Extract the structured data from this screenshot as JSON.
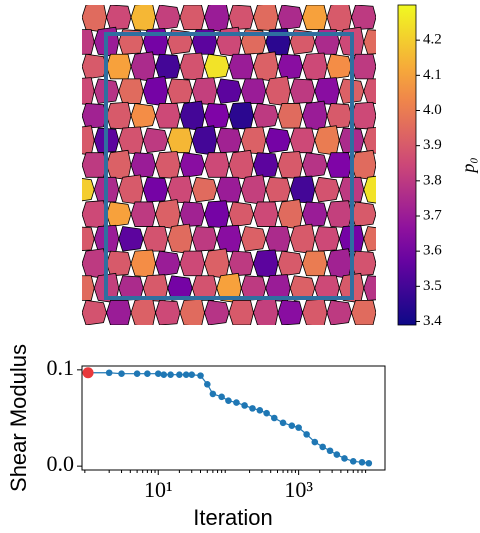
{
  "chart_data": [
    {
      "type": "tessellation",
      "colormap": "plasma",
      "colorbar_label": "p₀",
      "clim": [
        3.39,
        4.3
      ],
      "cticks": [
        3.4,
        3.5,
        3.6,
        3.7,
        3.8,
        3.9,
        {
          "value": 4,
          "label": "4.0"
        },
        4.1,
        4.2
      ],
      "cells": [
        [
          3.95,
          3.85,
          4.15,
          3.82,
          3.9,
          3.7,
          3.88,
          3.95,
          3.75,
          4.1,
          3.9,
          3.8
        ],
        [
          3.8,
          3.7,
          3.92,
          3.6,
          3.9,
          3.55,
          3.85,
          3.95,
          3.45,
          3.9,
          3.75,
          3.85,
          3.95
        ],
        [
          3.9,
          4.1,
          3.75,
          3.5,
          3.88,
          4.25,
          3.7,
          3.92,
          3.65,
          3.85,
          4.05,
          3.8
        ],
        [
          3.85,
          3.78,
          3.95,
          3.6,
          3.9,
          3.82,
          3.55,
          3.7,
          3.9,
          3.8,
          3.65,
          3.92,
          3.88
        ],
        [
          3.72,
          3.9,
          4.05,
          3.85,
          3.5,
          3.62,
          3.45,
          3.8,
          3.95,
          3.7,
          3.9,
          3.85
        ],
        [
          3.9,
          3.55,
          3.88,
          3.8,
          4.15,
          3.5,
          3.72,
          3.92,
          3.6,
          3.85,
          4.0,
          3.75,
          3.9
        ],
        [
          3.8,
          3.92,
          3.7,
          3.9,
          3.65,
          3.85,
          3.88,
          3.55,
          3.9,
          3.78,
          3.62,
          3.95
        ],
        [
          4.2,
          3.75,
          3.9,
          3.6,
          3.85,
          3.95,
          3.7,
          3.82,
          3.9,
          3.5,
          3.88,
          3.8,
          4.25
        ],
        [
          3.85,
          4.1,
          3.8,
          3.92,
          3.72,
          3.6,
          3.9,
          3.85,
          3.95,
          3.7,
          3.82,
          3.9
        ],
        [
          3.9,
          3.7,
          3.55,
          3.88,
          3.95,
          3.8,
          3.65,
          3.92,
          3.75,
          3.9,
          3.85,
          3.6,
          3.95
        ],
        [
          3.8,
          3.9,
          4.05,
          3.7,
          3.85,
          3.92,
          3.8,
          3.55,
          3.9,
          4.0,
          3.72,
          3.88
        ],
        [
          3.95,
          3.82,
          3.75,
          3.9,
          3.6,
          3.88,
          4.1,
          3.8,
          3.7,
          3.92,
          3.85,
          3.9,
          3.78
        ],
        [
          3.88,
          3.7,
          3.92,
          3.85,
          3.95,
          3.78,
          3.9,
          3.82,
          3.65,
          3.9,
          3.8,
          3.95
        ]
      ]
    },
    {
      "type": "line",
      "xscale": "log",
      "x_label": "Iteration",
      "y_label": "Shear Modulus",
      "color": "#1f77b4",
      "highlight_index": 0,
      "highlight_color": "#e8393c",
      "xlim": [
        0.82,
        17000
      ],
      "ylim": [
        -0.004,
        0.104
      ],
      "xticks": [
        {
          "value": 10,
          "label": "10¹"
        },
        {
          "value": 1000,
          "label": "10³"
        }
      ],
      "yticks": [
        {
          "value": 0,
          "label": "0.0"
        },
        0.1
      ],
      "x": [
        1,
        2,
        3,
        5,
        7,
        10,
        12,
        15,
        20,
        25,
        30,
        40,
        50,
        60,
        80,
        100,
        130,
        170,
        220,
        280,
        350,
        450,
        600,
        800,
        1000,
        1300,
        1700,
        2200,
        2800,
        3500,
        4500,
        6000,
        8000,
        10000
      ],
      "values": [
        0.097,
        0.097,
        0.096,
        0.096,
        0.096,
        0.096,
        0.095,
        0.095,
        0.095,
        0.095,
        0.095,
        0.094,
        0.085,
        0.075,
        0.072,
        0.068,
        0.066,
        0.063,
        0.06,
        0.058,
        0.055,
        0.05,
        0.045,
        0.042,
        0.04,
        0.033,
        0.025,
        0.02,
        0.016,
        0.012,
        0.008,
        0.005,
        0.004,
        0.003
      ]
    }
  ]
}
